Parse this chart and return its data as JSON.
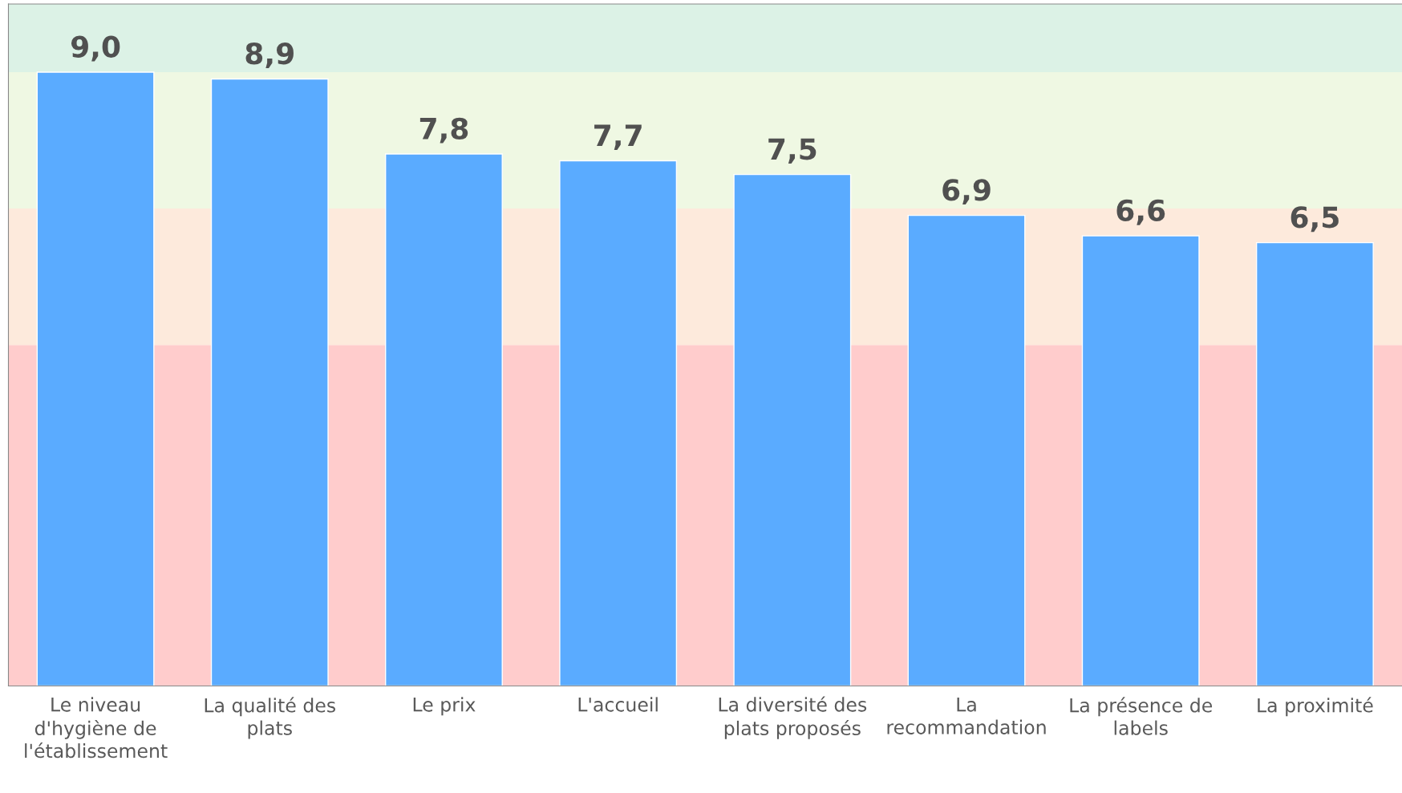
{
  "chart_data": {
    "type": "bar",
    "categories": [
      "Le niveau\nd'hygiène de\nl'établissement",
      "La qualité des\nplats",
      "Le prix",
      "L'accueil",
      "La diversité des\nplats proposés",
      "La\nrecommandation",
      "La présence de\nlabels",
      "La proximité"
    ],
    "values": [
      9.0,
      8.9,
      7.8,
      7.7,
      7.5,
      6.9,
      6.6,
      6.5
    ],
    "value_labels": [
      "9,0",
      "8,9",
      "7,8",
      "7,7",
      "7,5",
      "6,9",
      "6,6",
      "6,5"
    ],
    "color": "#5aabff",
    "ylim": [
      0,
      10
    ],
    "tick_labels": "x",
    "grid": false,
    "bands": [
      {
        "axis": "y",
        "from": 0,
        "to": 5,
        "color": "#ffcccc"
      },
      {
        "axis": "y",
        "from": 5,
        "to": 7,
        "color": "#fdeadc"
      },
      {
        "axis": "y",
        "from": 7,
        "to": 9,
        "color": "#eff8e3"
      },
      {
        "axis": "y",
        "from": 9,
        "to": 10,
        "color": "#dcf2e6"
      }
    ]
  }
}
